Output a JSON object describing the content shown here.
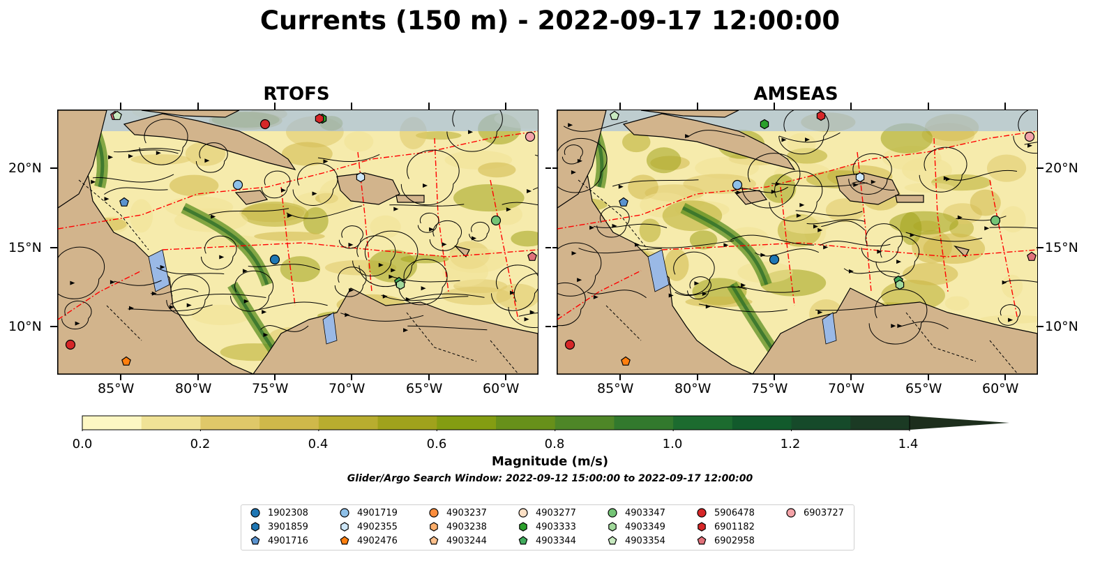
{
  "title": "Currents (150 m) - 2022-09-17 12:00:00",
  "panels": [
    {
      "title": "RTOFS"
    },
    {
      "title": "AMSEAS"
    }
  ],
  "lon_ticks": [
    "85°W",
    "80°W",
    "75°W",
    "70°W",
    "65°W",
    "60°W"
  ],
  "lat_ticks": [
    "20°N",
    "15°N",
    "10°N"
  ],
  "colorbar": {
    "label": "Magnitude (m/s)",
    "ticks": [
      "0.0",
      "0.2",
      "0.4",
      "0.6",
      "0.8",
      "1.0",
      "1.2",
      "1.4"
    ],
    "min": 0.0,
    "max": 1.5,
    "extend": "max",
    "colors": [
      "#fdf7c3",
      "#f0e296",
      "#dfc869",
      "#cfb84a",
      "#b8ad2f",
      "#a0a21c",
      "#849d12",
      "#67901a",
      "#4e8627",
      "#32792d",
      "#1c6b2f",
      "#125a2c",
      "#164a2a",
      "#1b3a24",
      "#1d2e1c"
    ]
  },
  "search_window": "Glider/Argo Search Window: 2022-09-12 15:00:00 to 2022-09-17 12:00:00",
  "map_colors": {
    "ocean": "#9ab9e6",
    "land": "#d2b48c",
    "eez": "#ff0000"
  },
  "legend": [
    {
      "id": "1902308",
      "marker": "circle",
      "color": "#1f77b4"
    },
    {
      "id": "3901859",
      "marker": "hexagon",
      "color": "#1f77b4"
    },
    {
      "id": "4901716",
      "marker": "pentagon",
      "color": "#5b93cf"
    },
    {
      "id": "4901719",
      "marker": "circle",
      "color": "#8ec0e8"
    },
    {
      "id": "4902355",
      "marker": "hexagon",
      "color": "#cde6f7"
    },
    {
      "id": "4902476",
      "marker": "pentagon",
      "color": "#ff7f0e"
    },
    {
      "id": "4903237",
      "marker": "circle",
      "color": "#fd8d3c"
    },
    {
      "id": "4903238",
      "marker": "hexagon",
      "color": "#fdae6b"
    },
    {
      "id": "4903244",
      "marker": "pentagon",
      "color": "#fdc08c"
    },
    {
      "id": "4903277",
      "marker": "circle",
      "color": "#fde0c5"
    },
    {
      "id": "4903333",
      "marker": "hexagon",
      "color": "#2ca02c"
    },
    {
      "id": "4903344",
      "marker": "pentagon",
      "color": "#41ab5d"
    },
    {
      "id": "4903347",
      "marker": "circle",
      "color": "#74c476"
    },
    {
      "id": "4903349",
      "marker": "hexagon",
      "color": "#a1d99b"
    },
    {
      "id": "4903354",
      "marker": "pentagon",
      "color": "#c7e9c0"
    },
    {
      "id": "5906478",
      "marker": "circle",
      "color": "#d62728"
    },
    {
      "id": "6901182",
      "marker": "hexagon",
      "color": "#d62728"
    },
    {
      "id": "6902958",
      "marker": "pentagon",
      "color": "#e0717a"
    },
    {
      "id": "6903727",
      "marker": "circle",
      "color": "#f4a3a8"
    }
  ]
}
